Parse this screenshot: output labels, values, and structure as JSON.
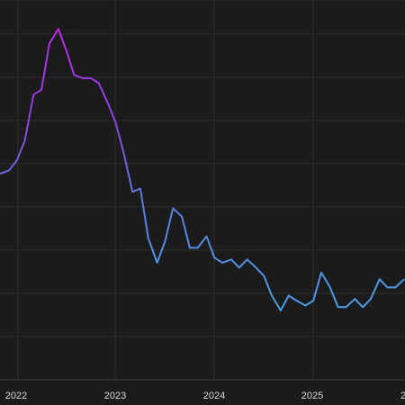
{
  "chart_data": {
    "type": "line",
    "title": "",
    "xlabel": "",
    "ylabel": "",
    "grid": true,
    "legend": "none",
    "x_tick_labels": [
      "2022",
      "2023",
      "2024",
      "2025",
      "2"
    ],
    "series": [
      {
        "values": [
          [
            2021.83,
            5.0
          ],
          [
            2021.92,
            5.2
          ],
          [
            2022.0,
            5.8
          ],
          [
            2022.08,
            7.0
          ],
          [
            2022.17,
            9.8
          ],
          [
            2022.25,
            10.1
          ],
          [
            2022.33,
            12.9
          ],
          [
            2022.42,
            13.8
          ],
          [
            2022.5,
            12.5
          ],
          [
            2022.58,
            11.0
          ],
          [
            2022.67,
            10.8
          ],
          [
            2022.75,
            10.8
          ],
          [
            2022.83,
            10.5
          ],
          [
            2022.92,
            9.3
          ],
          [
            2023.0,
            8.1
          ],
          [
            2023.08,
            6.3
          ],
          [
            2023.17,
            3.9
          ],
          [
            2023.25,
            4.1
          ],
          [
            2023.33,
            1.1
          ],
          [
            2023.42,
            -0.4
          ],
          [
            2023.5,
            0.9
          ],
          [
            2023.58,
            2.9
          ],
          [
            2023.67,
            2.4
          ],
          [
            2023.75,
            0.5
          ],
          [
            2023.83,
            0.5
          ],
          [
            2023.92,
            1.2
          ],
          [
            2024.0,
            -0.1
          ],
          [
            2024.08,
            -0.4
          ],
          [
            2024.17,
            -0.2
          ],
          [
            2024.25,
            -0.7
          ],
          [
            2024.33,
            -0.2
          ],
          [
            2024.42,
            -0.7
          ],
          [
            2024.5,
            -1.2
          ],
          [
            2024.58,
            -2.4
          ],
          [
            2024.67,
            -3.3
          ],
          [
            2024.75,
            -2.4
          ],
          [
            2024.83,
            -2.7
          ],
          [
            2024.92,
            -3.0
          ],
          [
            2025.0,
            -2.7
          ],
          [
            2025.08,
            -1.0
          ],
          [
            2025.17,
            -1.9
          ],
          [
            2025.25,
            -3.1
          ],
          [
            2025.33,
            -3.1
          ],
          [
            2025.42,
            -2.6
          ],
          [
            2025.5,
            -3.1
          ],
          [
            2025.58,
            -2.6
          ],
          [
            2025.67,
            -1.4
          ],
          [
            2025.75,
            -1.9
          ],
          [
            2025.83,
            -1.9
          ],
          [
            2025.92,
            -1.4
          ]
        ]
      }
    ],
    "colors": {
      "high": "#b92be6",
      "low": "#4a9fe4",
      "background": "#1b1b1b",
      "grid": "#2e2e2e",
      "text": "#d9d9d9"
    }
  }
}
